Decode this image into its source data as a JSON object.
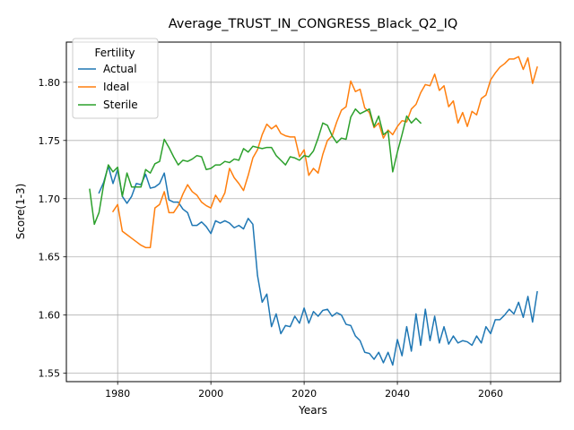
{
  "chart_data": {
    "type": "line",
    "title": "Average_TRUST_IN_CONGRESS_Black_Q2_IQ",
    "xlabel": "Years",
    "ylabel": "Score(1-3)",
    "xlim": [
      1969,
      2075
    ],
    "ylim": [
      1.5428,
      1.8345
    ],
    "xticks": [
      1980,
      2000,
      2020,
      2040,
      2060
    ],
    "yticks": [
      1.55,
      1.6,
      1.65,
      1.7,
      1.75,
      1.8
    ],
    "ytick_labels": [
      "1.55",
      "1.60",
      "1.65",
      "1.70",
      "1.75",
      "1.80"
    ],
    "grid": true,
    "legend": {
      "title": "Fertility",
      "position": "top-left"
    },
    "series": [
      {
        "name": "Actual",
        "color": "#1f77b4",
        "x": [
          1976,
          1977,
          1978,
          1979,
          1980,
          1981,
          1982,
          1983,
          1984,
          1985,
          1986,
          1987,
          1988,
          1989,
          1990,
          1991,
          1992,
          1993,
          1994,
          1995,
          1996,
          1997,
          1998,
          1999,
          2000,
          2001,
          2002,
          2003,
          2004,
          2005,
          2006,
          2007,
          2008,
          2009,
          2010,
          2011,
          2012,
          2013,
          2014,
          2015,
          2016,
          2017,
          2018,
          2019,
          2020,
          2021,
          2022,
          2023,
          2024,
          2025,
          2026,
          2027,
          2028,
          2029,
          2030,
          2031,
          2032,
          2033,
          2034,
          2035,
          2036,
          2037,
          2038,
          2039,
          2040,
          2041,
          2042,
          2043,
          2044,
          2045,
          2046,
          2047,
          2048,
          2049,
          2050,
          2051,
          2052,
          2053,
          2054,
          2055,
          2056,
          2057,
          2058,
          2059,
          2060,
          2061,
          2062,
          2063,
          2064,
          2065,
          2066,
          2067,
          2068,
          2069,
          2070
        ],
        "y": [
          1.705,
          1.714,
          1.728,
          1.713,
          1.725,
          1.702,
          1.696,
          1.702,
          1.713,
          1.712,
          1.721,
          1.709,
          1.71,
          1.713,
          1.722,
          1.699,
          1.697,
          1.697,
          1.691,
          1.688,
          1.677,
          1.677,
          1.68,
          1.676,
          1.67,
          1.681,
          1.679,
          1.681,
          1.679,
          1.675,
          1.677,
          1.674,
          1.683,
          1.678,
          1.634,
          1.611,
          1.618,
          1.59,
          1.601,
          1.584,
          1.591,
          1.59,
          1.599,
          1.593,
          1.606,
          1.593,
          1.603,
          1.599,
          1.604,
          1.605,
          1.599,
          1.602,
          1.6,
          1.592,
          1.591,
          1.582,
          1.578,
          1.568,
          1.567,
          1.562,
          1.568,
          1.559,
          1.568,
          1.557,
          1.579,
          1.565,
          1.59,
          1.569,
          1.601,
          1.574,
          1.605,
          1.578,
          1.599,
          1.576,
          1.59,
          1.575,
          1.582,
          1.576,
          1.578,
          1.577,
          1.574,
          1.582,
          1.576,
          1.59,
          1.584,
          1.596,
          1.596,
          1.6,
          1.605,
          1.601,
          1.611,
          1.598,
          1.616,
          1.594,
          1.62
        ]
      },
      {
        "name": "Ideal",
        "color": "#ff7f0e",
        "x": [
          1979,
          1980,
          1981,
          1982,
          1983,
          1984,
          1985,
          1986,
          1987,
          1988,
          1989,
          1990,
          1991,
          1992,
          1993,
          1994,
          1995,
          1996,
          1997,
          1998,
          1999,
          2000,
          2001,
          2002,
          2003,
          2004,
          2005,
          2006,
          2007,
          2008,
          2009,
          2010,
          2011,
          2012,
          2013,
          2014,
          2015,
          2016,
          2017,
          2018,
          2019,
          2020,
          2021,
          2022,
          2023,
          2024,
          2025,
          2026,
          2027,
          2028,
          2029,
          2030,
          2031,
          2032,
          2033,
          2034,
          2035,
          2036,
          2037,
          2038,
          2039,
          2040,
          2041,
          2042,
          2043,
          2044,
          2045,
          2046,
          2047,
          2048,
          2049,
          2050,
          2051,
          2052,
          2053,
          2054,
          2055,
          2056,
          2057,
          2058,
          2059,
          2060,
          2061,
          2062,
          2063,
          2064,
          2065,
          2066,
          2067,
          2068,
          2069,
          2070
        ],
        "y": [
          1.689,
          1.695,
          1.672,
          1.669,
          1.666,
          1.663,
          1.66,
          1.658,
          1.658,
          1.692,
          1.695,
          1.706,
          1.688,
          1.688,
          1.694,
          1.704,
          1.712,
          1.706,
          1.703,
          1.697,
          1.694,
          1.692,
          1.703,
          1.697,
          1.705,
          1.726,
          1.718,
          1.713,
          1.707,
          1.72,
          1.735,
          1.742,
          1.755,
          1.764,
          1.76,
          1.763,
          1.756,
          1.754,
          1.753,
          1.753,
          1.736,
          1.742,
          1.72,
          1.726,
          1.722,
          1.738,
          1.75,
          1.754,
          1.766,
          1.776,
          1.779,
          1.801,
          1.792,
          1.794,
          1.778,
          1.774,
          1.761,
          1.765,
          1.752,
          1.759,
          1.755,
          1.762,
          1.767,
          1.766,
          1.777,
          1.781,
          1.791,
          1.798,
          1.797,
          1.807,
          1.793,
          1.797,
          1.779,
          1.784,
          1.765,
          1.774,
          1.762,
          1.775,
          1.772,
          1.786,
          1.789,
          1.802,
          1.808,
          1.813,
          1.816,
          1.82,
          1.82,
          1.822,
          1.811,
          1.821,
          1.799,
          1.813
        ]
      },
      {
        "name": "Sterile",
        "color": "#2ca02c",
        "x": [
          1974,
          1975,
          1976,
          1977,
          1978,
          1979,
          1980,
          1981,
          1982,
          1983,
          1984,
          1985,
          1986,
          1987,
          1988,
          1989,
          1990,
          1991,
          1992,
          1993,
          1994,
          1995,
          1996,
          1997,
          1998,
          1999,
          2000,
          2001,
          2002,
          2003,
          2004,
          2005,
          2006,
          2007,
          2008,
          2009,
          2010,
          2011,
          2012,
          2013,
          2014,
          2015,
          2016,
          2017,
          2018,
          2019,
          2020,
          2021,
          2022,
          2023,
          2024,
          2025,
          2026,
          2027,
          2028,
          2029,
          2030,
          2031,
          2032,
          2033,
          2034,
          2035,
          2036,
          2037,
          2038,
          2039,
          2040,
          2041,
          2042,
          2043,
          2044,
          2045
        ],
        "y": [
          1.708,
          1.678,
          1.688,
          1.712,
          1.729,
          1.723,
          1.727,
          1.702,
          1.722,
          1.71,
          1.71,
          1.71,
          1.725,
          1.722,
          1.73,
          1.732,
          1.751,
          1.744,
          1.736,
          1.729,
          1.733,
          1.732,
          1.734,
          1.737,
          1.736,
          1.725,
          1.726,
          1.729,
          1.729,
          1.732,
          1.731,
          1.734,
          1.733,
          1.743,
          1.74,
          1.745,
          1.744,
          1.743,
          1.744,
          1.744,
          1.737,
          1.733,
          1.729,
          1.736,
          1.735,
          1.733,
          1.737,
          1.736,
          1.741,
          1.752,
          1.765,
          1.763,
          1.754,
          1.748,
          1.752,
          1.751,
          1.77,
          1.777,
          1.773,
          1.775,
          1.777,
          1.762,
          1.771,
          1.755,
          1.758,
          1.723,
          1.74,
          1.755,
          1.771,
          1.765,
          1.769,
          1.765
        ]
      }
    ]
  }
}
